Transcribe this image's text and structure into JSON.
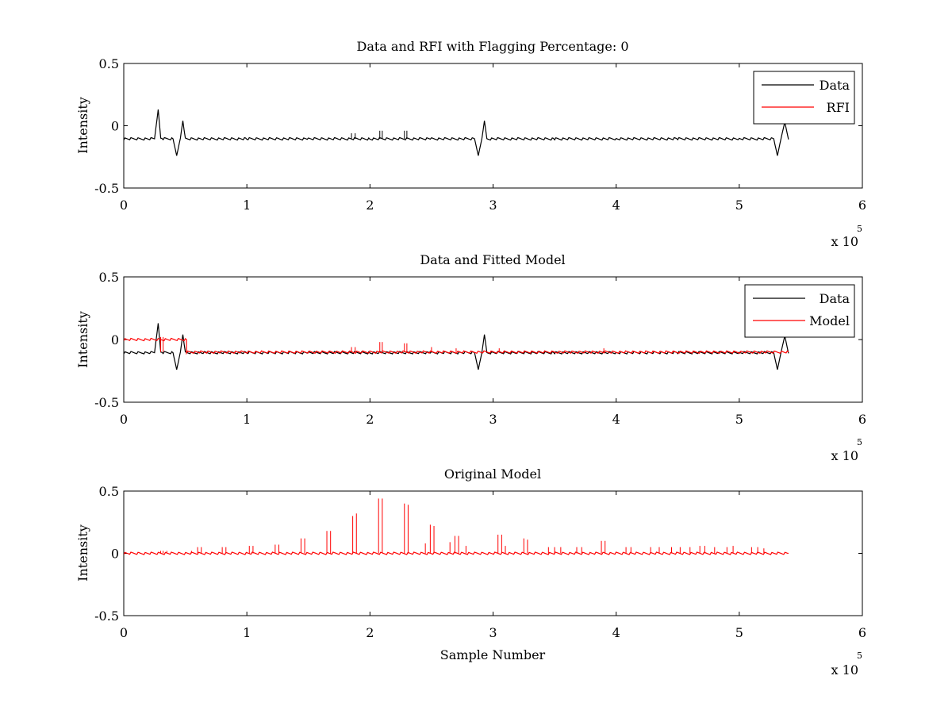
{
  "chart_data": [
    {
      "type": "line",
      "title": "Data and RFI with Flagging Percentage: 0",
      "xlabel": "",
      "ylabel": "Intensity",
      "xlim": [
        0,
        6
      ],
      "ylim": [
        -0.5,
        0.5
      ],
      "x_ticks": [
        "0",
        "1",
        "2",
        "3",
        "4",
        "5",
        "6"
      ],
      "y_ticks": [
        "-0.5",
        "0",
        "0.5"
      ],
      "x_multiplier": {
        "base": "x 10",
        "exponent": "5"
      },
      "legend": {
        "position": "top-right",
        "entries": [
          {
            "label": "Data",
            "color": "#000000"
          },
          {
            "label": "RFI",
            "color": "#ff0000"
          }
        ]
      },
      "series": [
        {
          "name": "Data",
          "color": "#000000",
          "baseline": -0.105,
          "x": [
            0,
            0.25,
            0.28,
            0.3,
            0.32,
            0.4,
            0.43,
            0.46,
            0.48,
            0.5,
            1.0,
            1.5,
            2.0,
            2.5,
            2.85,
            2.88,
            2.91,
            2.93,
            2.95,
            3.5,
            4.0,
            4.5,
            5.0,
            5.28,
            5.31,
            5.34,
            5.37,
            5.4
          ],
          "y": [
            -0.105,
            -0.105,
            0.13,
            -0.1,
            -0.105,
            -0.105,
            -0.24,
            -0.1,
            0.04,
            -0.105,
            -0.105,
            -0.105,
            -0.105,
            -0.105,
            -0.105,
            -0.24,
            -0.1,
            0.04,
            -0.105,
            -0.105,
            -0.105,
            -0.105,
            -0.105,
            -0.105,
            -0.24,
            -0.1,
            0.03,
            -0.11
          ],
          "spikes": [
            [
              1.85,
              -0.06
            ],
            [
              1.88,
              -0.06
            ],
            [
              2.08,
              -0.04
            ],
            [
              2.1,
              -0.04
            ],
            [
              2.28,
              -0.04
            ],
            [
              2.3,
              -0.04
            ]
          ]
        },
        {
          "name": "RFI",
          "color": "#ff0000",
          "x": [],
          "y": []
        }
      ]
    },
    {
      "type": "line",
      "title": "Data and Fitted Model",
      "xlabel": "",
      "ylabel": "Intensity",
      "xlim": [
        0,
        6
      ],
      "ylim": [
        -0.5,
        0.5
      ],
      "x_ticks": [
        "0",
        "1",
        "2",
        "3",
        "4",
        "5",
        "6"
      ],
      "y_ticks": [
        "-0.5",
        "0",
        "0.5"
      ],
      "x_multiplier": {
        "base": "x 10",
        "exponent": "5"
      },
      "legend": {
        "position": "top-right",
        "entries": [
          {
            "label": "Data",
            "color": "#000000"
          },
          {
            "label": "Model",
            "color": "#ff0000"
          }
        ]
      },
      "series": [
        {
          "name": "Data",
          "color": "#000000",
          "baseline": -0.105,
          "x": [
            0,
            0.25,
            0.28,
            0.3,
            0.32,
            0.4,
            0.43,
            0.46,
            0.48,
            0.5,
            1.0,
            1.5,
            2.0,
            2.5,
            2.85,
            2.88,
            2.91,
            2.93,
            2.95,
            3.5,
            4.0,
            4.5,
            5.0,
            5.28,
            5.31,
            5.34,
            5.37,
            5.4
          ],
          "y": [
            -0.105,
            -0.105,
            0.13,
            -0.1,
            -0.105,
            -0.105,
            -0.24,
            -0.1,
            0.04,
            -0.105,
            -0.105,
            -0.105,
            -0.105,
            -0.105,
            -0.105,
            -0.24,
            -0.1,
            0.04,
            -0.105,
            -0.105,
            -0.105,
            -0.105,
            -0.105,
            -0.105,
            -0.24,
            -0.1,
            0.03,
            -0.11
          ],
          "spikes": []
        },
        {
          "name": "Model",
          "color": "#ff0000",
          "baseline": -0.1,
          "x": [
            0,
            0.51,
            0.51,
            5.4
          ],
          "y": [
            0.0,
            0.0,
            -0.1,
            -0.1
          ],
          "spikes": [
            [
              0.3,
              0.02
            ],
            [
              0.32,
              0.02
            ],
            [
              1.85,
              -0.06
            ],
            [
              1.88,
              -0.06
            ],
            [
              2.08,
              -0.02
            ],
            [
              2.1,
              -0.02
            ],
            [
              2.28,
              -0.03
            ],
            [
              2.3,
              -0.03
            ],
            [
              2.5,
              -0.06
            ],
            [
              2.7,
              -0.07
            ],
            [
              3.05,
              -0.07
            ],
            [
              3.9,
              -0.07
            ]
          ]
        }
      ]
    },
    {
      "type": "line",
      "title": "Original Model",
      "xlabel": "Sample Number",
      "ylabel": "Intensity",
      "xlim": [
        0,
        6
      ],
      "ylim": [
        -0.5,
        0.5
      ],
      "x_ticks": [
        "0",
        "1",
        "2",
        "3",
        "4",
        "5",
        "6"
      ],
      "y_ticks": [
        "-0.5",
        "0",
        "0.5"
      ],
      "x_multiplier": {
        "base": "x 10",
        "exponent": "5"
      },
      "series": [
        {
          "name": "Model",
          "color": "#ff0000",
          "baseline": 0.0,
          "x": [
            0,
            5.4
          ],
          "y": [
            0.0,
            0.0
          ],
          "spikes": [
            [
              0.3,
              0.02
            ],
            [
              0.32,
              0.02
            ],
            [
              0.35,
              0.02
            ],
            [
              0.55,
              0.02
            ],
            [
              0.6,
              0.05
            ],
            [
              0.63,
              0.05
            ],
            [
              0.8,
              0.05
            ],
            [
              0.83,
              0.05
            ],
            [
              1.02,
              0.06
            ],
            [
              1.05,
              0.06
            ],
            [
              1.23,
              0.07
            ],
            [
              1.26,
              0.07
            ],
            [
              1.44,
              0.12
            ],
            [
              1.47,
              0.12
            ],
            [
              1.65,
              0.18
            ],
            [
              1.68,
              0.18
            ],
            [
              1.86,
              0.3
            ],
            [
              1.89,
              0.32
            ],
            [
              2.07,
              0.44
            ],
            [
              2.1,
              0.44
            ],
            [
              2.28,
              0.4
            ],
            [
              2.31,
              0.39
            ],
            [
              2.45,
              0.08
            ],
            [
              2.49,
              0.23
            ],
            [
              2.52,
              0.22
            ],
            [
              2.65,
              0.09
            ],
            [
              2.69,
              0.14
            ],
            [
              2.72,
              0.14
            ],
            [
              2.78,
              0.06
            ],
            [
              3.04,
              0.15
            ],
            [
              3.07,
              0.15
            ],
            [
              3.1,
              0.06
            ],
            [
              3.25,
              0.12
            ],
            [
              3.28,
              0.11
            ],
            [
              3.45,
              0.05
            ],
            [
              3.5,
              0.05
            ],
            [
              3.55,
              0.05
            ],
            [
              3.68,
              0.05
            ],
            [
              3.72,
              0.05
            ],
            [
              3.88,
              0.1
            ],
            [
              3.91,
              0.1
            ],
            [
              4.08,
              0.05
            ],
            [
              4.12,
              0.05
            ],
            [
              4.28,
              0.05
            ],
            [
              4.35,
              0.05
            ],
            [
              4.45,
              0.05
            ],
            [
              4.52,
              0.05
            ],
            [
              4.6,
              0.05
            ],
            [
              4.68,
              0.06
            ],
            [
              4.72,
              0.06
            ],
            [
              4.8,
              0.05
            ],
            [
              4.9,
              0.05
            ],
            [
              4.95,
              0.06
            ],
            [
              5.1,
              0.05
            ],
            [
              5.15,
              0.05
            ],
            [
              5.2,
              0.04
            ]
          ]
        }
      ]
    }
  ]
}
